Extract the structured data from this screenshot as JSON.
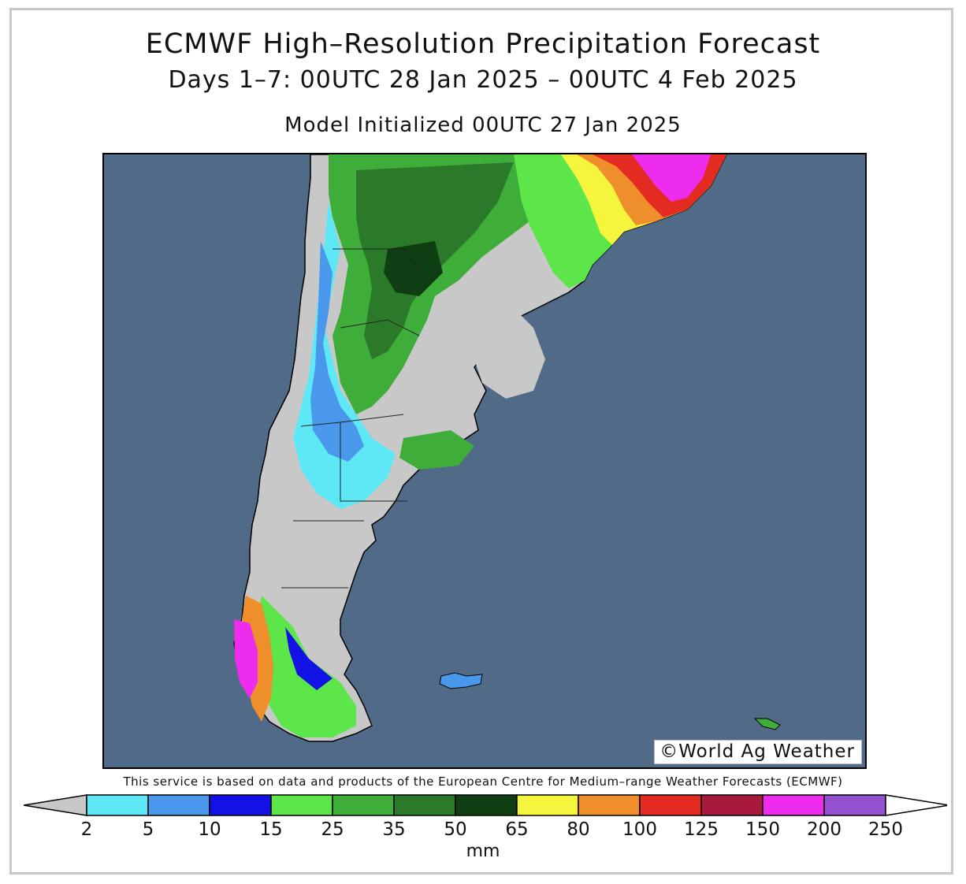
{
  "header": {
    "title": "ECMWF High–Resolution Precipitation Forecast",
    "range": "Days 1–7: 00UTC 28 Jan 2025 – 00UTC 4 Feb 2025",
    "initialized": "Model Initialized 00UTC 27 Jan 2025"
  },
  "map": {
    "watermark": "©World Ag Weather",
    "ocean_color": "#506a87",
    "land_dry_color": "#c8c8c8"
  },
  "credit": "This service is based on data and products of the European Centre for Medium–range Weather Forecasts (ECMWF)",
  "legend": {
    "unit": "mm",
    "thresholds": [
      "2",
      "5",
      "10",
      "15",
      "25",
      "35",
      "50",
      "65",
      "80",
      "100",
      "125",
      "150",
      "200",
      "250"
    ],
    "below_color": "#c8c8c8",
    "above_color": "#ffffff",
    "colors": [
      "#5ee8f6",
      "#4a98ec",
      "#1212e6",
      "#5ce64a",
      "#3fad3a",
      "#2a7a2a",
      "#0f3e12",
      "#f5f53e",
      "#ef8f2c",
      "#e32b22",
      "#a8193e",
      "#ee2ced",
      "#9252cf"
    ]
  }
}
